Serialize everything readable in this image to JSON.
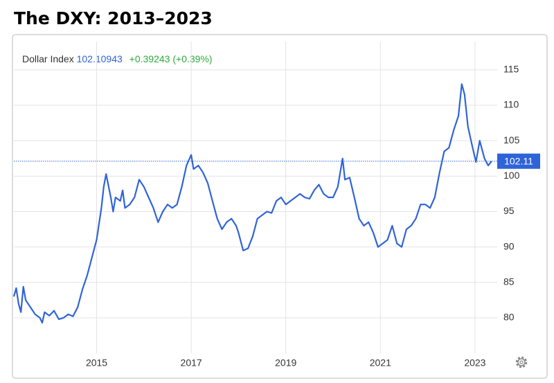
{
  "chart_data": {
    "type": "line",
    "title": "The DXY: 2013–2023",
    "legend": {
      "name": "Dollar Index",
      "last": "102.10943",
      "change": "+0.39243 (+0.39%)"
    },
    "series": [
      {
        "name": "Dollar Index",
        "color": "#2f63d8",
        "x": [
          2013.25,
          2013.3,
          2013.35,
          2013.4,
          2013.45,
          2013.5,
          2013.6,
          2013.7,
          2013.8,
          2013.85,
          2013.9,
          2014.0,
          2014.1,
          2014.2,
          2014.3,
          2014.4,
          2014.5,
          2014.6,
          2014.7,
          2014.8,
          2014.9,
          2015.0,
          2015.1,
          2015.15,
          2015.2,
          2015.3,
          2015.35,
          2015.4,
          2015.5,
          2015.55,
          2015.6,
          2015.7,
          2015.8,
          2015.9,
          2016.0,
          2016.1,
          2016.2,
          2016.3,
          2016.4,
          2016.5,
          2016.6,
          2016.7,
          2016.8,
          2016.9,
          2017.0,
          2017.05,
          2017.15,
          2017.25,
          2017.35,
          2017.45,
          2017.55,
          2017.65,
          2017.75,
          2017.85,
          2017.95,
          2018.0,
          2018.1,
          2018.2,
          2018.3,
          2018.4,
          2018.5,
          2018.6,
          2018.7,
          2018.8,
          2018.9,
          2019.0,
          2019.1,
          2019.2,
          2019.3,
          2019.4,
          2019.5,
          2019.6,
          2019.7,
          2019.8,
          2019.9,
          2020.0,
          2020.1,
          2020.2,
          2020.25,
          2020.35,
          2020.45,
          2020.55,
          2020.65,
          2020.75,
          2020.85,
          2020.95,
          2021.05,
          2021.15,
          2021.25,
          2021.35,
          2021.45,
          2021.55,
          2021.65,
          2021.75,
          2021.85,
          2021.95,
          2022.05,
          2022.15,
          2022.25,
          2022.35,
          2022.45,
          2022.55,
          2022.65,
          2022.72,
          2022.78,
          2022.85,
          2022.95,
          2023.02,
          2023.1,
          2023.2,
          2023.28,
          2023.35
        ],
        "values": [
          83.0,
          84.2,
          82.0,
          80.8,
          84.4,
          82.5,
          81.5,
          80.5,
          80.0,
          79.3,
          80.8,
          80.3,
          81.0,
          79.8,
          80.0,
          80.5,
          80.2,
          81.5,
          84.0,
          86.0,
          88.5,
          91.0,
          95.5,
          98.5,
          100.3,
          97.0,
          95.0,
          97.0,
          96.5,
          98.0,
          95.5,
          96.0,
          97.0,
          99.5,
          98.5,
          97.0,
          95.5,
          93.5,
          95.0,
          96.0,
          95.5,
          96.0,
          98.5,
          101.5,
          103.0,
          101.0,
          101.5,
          100.5,
          99.0,
          96.5,
          94.0,
          92.5,
          93.5,
          94.0,
          93.0,
          92.0,
          89.5,
          89.8,
          91.5,
          94.0,
          94.5,
          95.0,
          94.8,
          96.5,
          97.0,
          96.0,
          96.5,
          97.0,
          97.5,
          97.0,
          96.8,
          98.0,
          98.8,
          97.5,
          97.0,
          97.0,
          98.5,
          102.5,
          99.5,
          99.8,
          97.0,
          94.0,
          93.0,
          93.5,
          92.0,
          90.0,
          90.5,
          91.0,
          93.0,
          90.5,
          90.0,
          92.5,
          93.0,
          94.0,
          96.0,
          96.0,
          95.5,
          97.0,
          100.5,
          103.5,
          104.0,
          106.5,
          108.5,
          113.0,
          111.5,
          107.0,
          104.0,
          102.0,
          105.0,
          102.5,
          101.5,
          102.1
        ]
      }
    ],
    "reference_line": {
      "value": 102.11
    },
    "xlim": [
      2013.25,
      2023.47
    ],
    "xticks": [
      2015,
      2017,
      2019,
      2021,
      2023
    ],
    "ylim": [
      75,
      119
    ],
    "yticks": [
      80,
      85,
      90,
      95,
      100,
      105,
      110,
      115
    ],
    "grid": true
  }
}
